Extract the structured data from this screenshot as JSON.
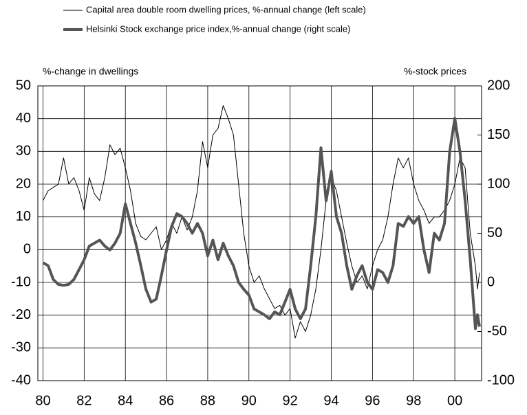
{
  "chart_data": {
    "type": "line",
    "y_label": "%-change in dwellings",
    "y2_label": "%-stock prices",
    "xlim": [
      1979.75,
      2001.3
    ],
    "xticks": [
      {
        "value": 1980,
        "label": "80"
      },
      {
        "value": 1982,
        "label": "82"
      },
      {
        "value": 1984,
        "label": "84"
      },
      {
        "value": 1986,
        "label": "86"
      },
      {
        "value": 1988,
        "label": "88"
      },
      {
        "value": 1990,
        "label": "90"
      },
      {
        "value": 1992,
        "label": "92"
      },
      {
        "value": 1994,
        "label": "94"
      },
      {
        "value": 1996,
        "label": "96"
      },
      {
        "value": 1998,
        "label": "98"
      },
      {
        "value": 2000,
        "label": "00"
      }
    ],
    "ylim": [
      -40,
      50
    ],
    "yticks": [
      -40,
      -30,
      -20,
      -10,
      0,
      10,
      20,
      30,
      40,
      50
    ],
    "y2lim": [
      -100,
      200
    ],
    "y2ticks": [
      -100,
      -50,
      0,
      50,
      100,
      150,
      200
    ],
    "grid": true,
    "series": [
      {
        "name": "Capital area double room dwelling prices, %-annual change (left scale)",
        "color": "#000000",
        "width": 1,
        "x": [
          1980,
          1980.25,
          1980.5,
          1980.75,
          1981,
          1981.25,
          1981.5,
          1981.75,
          1982,
          1982.25,
          1982.5,
          1982.75,
          1983,
          1983.25,
          1983.5,
          1983.75,
          1984,
          1984.25,
          1984.5,
          1984.75,
          1985,
          1985.25,
          1985.5,
          1985.75,
          1986,
          1986.25,
          1986.5,
          1986.75,
          1987,
          1987.25,
          1987.5,
          1987.75,
          1988,
          1988.25,
          1988.5,
          1988.75,
          1989,
          1989.25,
          1989.5,
          1989.75,
          1990,
          1990.25,
          1990.5,
          1990.75,
          1991,
          1991.25,
          1991.5,
          1991.75,
          1992,
          1992.25,
          1992.5,
          1992.75,
          1993,
          1993.25,
          1993.5,
          1993.75,
          1994,
          1994.25,
          1994.5,
          1994.75,
          1995,
          1995.25,
          1995.5,
          1995.75,
          1996,
          1996.25,
          1996.5,
          1996.75,
          1997,
          1997.25,
          1997.5,
          1997.75,
          1998,
          1998.25,
          1998.5,
          1998.75,
          1999,
          1999.25,
          1999.5,
          1999.75,
          2000,
          2000.25,
          2000.5,
          2000.75,
          2001,
          2001.1,
          2001.2
        ],
        "values": [
          15,
          18,
          19,
          20,
          28,
          20,
          22,
          18,
          12,
          22,
          17,
          15,
          22,
          32,
          29,
          31,
          25,
          18,
          8,
          4,
          3,
          5,
          7,
          0,
          3,
          8,
          5,
          10,
          6,
          10,
          18,
          33,
          25,
          35,
          37,
          44,
          40,
          35,
          20,
          5,
          -5,
          -10,
          -8,
          -12,
          -15,
          -18,
          -17,
          -20,
          -18,
          -27,
          -22,
          -25,
          -20,
          -12,
          0,
          15,
          22,
          18,
          10,
          2,
          -5,
          -10,
          -8,
          -12,
          -5,
          0,
          3,
          10,
          20,
          28,
          25,
          28,
          20,
          15,
          12,
          8,
          10,
          10,
          12,
          15,
          20,
          28,
          25,
          5,
          -5,
          -12,
          -7
        ]
      },
      {
        "name": "Helsinki Stock exchange price index,%-annual change (right scale)",
        "color": "#555555",
        "width": 4,
        "axis": "y2",
        "x": [
          1980,
          1980.25,
          1980.5,
          1980.75,
          1981,
          1981.25,
          1981.5,
          1981.75,
          1982,
          1982.25,
          1982.5,
          1982.75,
          1983,
          1983.25,
          1983.5,
          1983.75,
          1984,
          1984.25,
          1984.5,
          1984.75,
          1985,
          1985.25,
          1985.5,
          1985.75,
          1986,
          1986.25,
          1986.5,
          1986.75,
          1987,
          1987.25,
          1987.5,
          1987.75,
          1988,
          1988.25,
          1988.5,
          1988.75,
          1989,
          1989.25,
          1989.5,
          1989.75,
          1990,
          1990.25,
          1990.5,
          1990.75,
          1991,
          1991.25,
          1991.5,
          1991.75,
          1992,
          1992.25,
          1992.5,
          1992.75,
          1993,
          1993.25,
          1993.5,
          1993.75,
          1994,
          1994.25,
          1994.5,
          1994.75,
          1995,
          1995.25,
          1995.5,
          1995.75,
          1996,
          1996.25,
          1996.5,
          1996.75,
          1997,
          1997.25,
          1997.5,
          1997.75,
          1998,
          1998.25,
          1998.5,
          1998.75,
          1999,
          1999.25,
          1999.5,
          1999.75,
          2000,
          2000.25,
          2000.5,
          2000.75,
          2001,
          2001.1,
          2001.2
        ],
        "values": [
          20,
          17,
          3,
          -2,
          -3,
          -2,
          3,
          13,
          23,
          37,
          40,
          43,
          37,
          33,
          40,
          50,
          80,
          60,
          40,
          17,
          -7,
          -20,
          -17,
          7,
          33,
          57,
          70,
          67,
          60,
          50,
          60,
          50,
          27,
          43,
          23,
          40,
          27,
          17,
          0,
          -7,
          -13,
          -27,
          -30,
          -33,
          -37,
          -30,
          -33,
          -20,
          -7,
          -27,
          -37,
          -27,
          17,
          67,
          137,
          83,
          113,
          67,
          50,
          17,
          -7,
          7,
          17,
          0,
          -7,
          13,
          10,
          0,
          17,
          60,
          57,
          67,
          60,
          67,
          33,
          10,
          50,
          43,
          60,
          133,
          167,
          133,
          83,
          23,
          -47,
          -33,
          -45
        ]
      }
    ]
  }
}
